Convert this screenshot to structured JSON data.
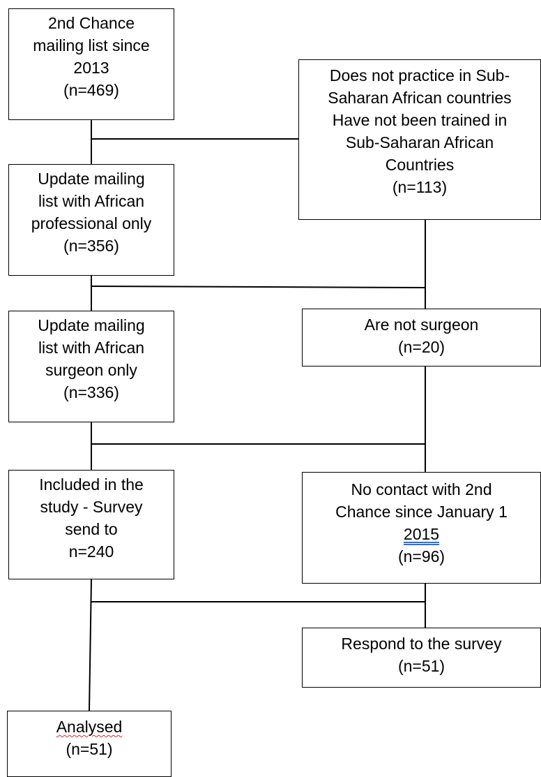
{
  "boxes": {
    "b1": {
      "lines": [
        "2nd Chance",
        "mailing list since",
        "2013",
        "(n=469)"
      ]
    },
    "b2": {
      "lines": [
        "Update mailing",
        "list with African",
        "professional only",
        "(n=356)"
      ]
    },
    "b3": {
      "lines": [
        "Update mailing",
        "list with African",
        "surgeon only",
        "(n=336)"
      ]
    },
    "b4": {
      "lines": [
        "Included in the",
        "study - Survey",
        "send to",
        "n=240"
      ]
    },
    "b5": {
      "lines": [
        "Analysed",
        "(n=51)"
      ]
    },
    "e1": {
      "lines": [
        "Does not practice in Sub-",
        "Saharan African countries",
        "Have not been trained in",
        "Sub-Saharan African",
        "Countries",
        "(n=113)"
      ]
    },
    "e2": {
      "lines": [
        "Are not surgeon",
        "(n=20)"
      ]
    },
    "e3": {
      "lines": [
        "No contact with 2nd",
        "Chance since January 1",
        "2015",
        "(n=96)"
      ]
    },
    "e4": {
      "lines": [
        "Respond to the survey",
        "(n=51)"
      ]
    }
  }
}
